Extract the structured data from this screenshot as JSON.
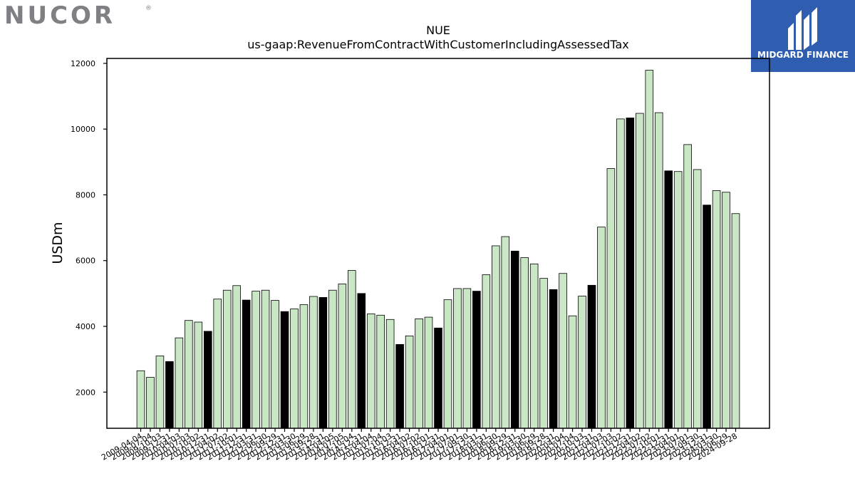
{
  "brand": {
    "left_logo_text": "NUCOR",
    "right_logo_text": "MIDGARD FINANCE"
  },
  "colors": {
    "bar_light": "#c9e7c4",
    "bar_dark": "#000000",
    "logo_gray": "#7f8083",
    "logo_blue": "#2f5db0"
  },
  "chart_data": {
    "type": "bar",
    "title": "NUE",
    "subtitle": "us-gaap:RevenueFromContractWithCustomerIncludingAssessedTax",
    "xlabel": "",
    "ylabel": "USDm",
    "ylim": [
      900,
      12150
    ],
    "yticks": [
      2000,
      4000,
      6000,
      8000,
      10000,
      12000
    ],
    "grid": false,
    "categories": [
      "2009-04-04",
      "2009-07-04",
      "2009-10-03",
      "2009-12-31",
      "2010-04-03",
      "2010-07-03",
      "2010-10-02",
      "2010-12-31",
      "2011-04-02",
      "2011-07-02",
      "2011-10-01",
      "2011-12-31",
      "2012-03-31",
      "2012-06-30",
      "2012-09-29",
      "2012-12-31",
      "2013-03-30",
      "2013-06-29",
      "2013-09-28",
      "2013-12-31",
      "2014-04-05",
      "2014-07-05",
      "2014-10-04",
      "2014-12-31",
      "2015-04-04",
      "2015-07-04",
      "2015-10-03",
      "2015-12-31",
      "2016-04-02",
      "2016-07-02",
      "2016-10-01",
      "2016-12-31",
      "2017-04-01",
      "2017-07-01",
      "2017-09-30",
      "2017-12-31",
      "2018-03-31",
      "2018-06-30",
      "2018-09-29",
      "2018-12-31",
      "2019-03-30",
      "2019-06-29",
      "2019-09-28",
      "2019-12-31",
      "2020-04-04",
      "2020-07-04",
      "2020-10-03",
      "2020-12-31",
      "2021-04-03",
      "2021-07-03",
      "2021-10-02",
      "2021-12-31",
      "2022-04-02",
      "2022-07-02",
      "2022-10-01",
      "2022-12-31",
      "2023-04-01",
      "2023-07-01",
      "2023-09-30",
      "2023-12-31",
      "2024-03-30",
      "2024-06-29",
      "2024-09-28"
    ],
    "values": [
      2650,
      2450,
      3100,
      2930,
      3650,
      4180,
      4130,
      3850,
      4830,
      5100,
      5240,
      4800,
      5070,
      5100,
      4790,
      4450,
      4530,
      4660,
      4910,
      4880,
      5100,
      5290,
      5700,
      5000,
      4380,
      4340,
      4210,
      3450,
      3710,
      4230,
      4280,
      3950,
      4810,
      5150,
      5150,
      5070,
      5570,
      6450,
      6730,
      6290,
      6090,
      5900,
      5460,
      5120,
      5610,
      4320,
      4920,
      5250,
      7020,
      8800,
      10310,
      10340,
      10480,
      11790,
      10500,
      8730,
      8710,
      9530,
      8770,
      7690,
      8130,
      8080,
      7430
    ],
    "dark_indices": [
      3,
      7,
      11,
      15,
      19,
      23,
      27,
      31,
      35,
      39,
      43,
      47,
      51,
      55,
      59
    ]
  }
}
